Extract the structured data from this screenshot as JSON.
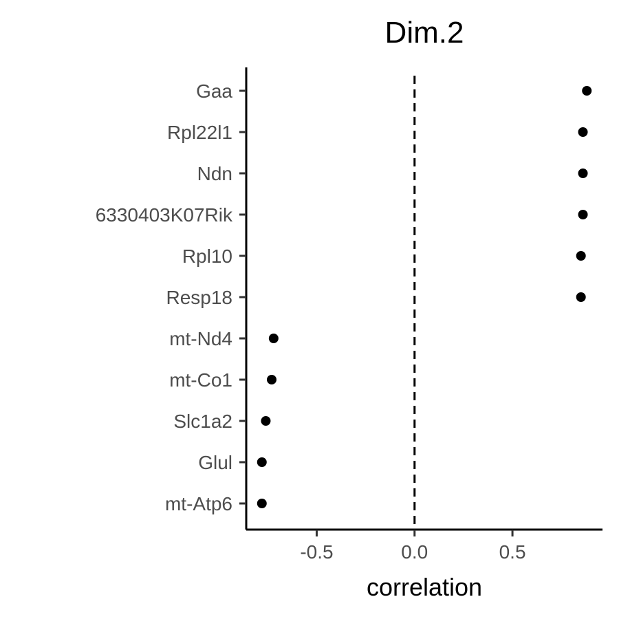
{
  "chart_data": {
    "type": "scatter",
    "title": "Dim.2",
    "xlabel": "correlation",
    "ylabel": "",
    "xlim": [
      -0.86,
      0.96
    ],
    "xticks": [
      -0.5,
      0.0,
      0.5
    ],
    "xtick_labels": [
      "-0.5",
      "0.0",
      "0.5"
    ],
    "reference_line": {
      "x": 0,
      "style": "dashed"
    },
    "grid": false,
    "legend": "none",
    "categories": [
      "Gaa",
      "Rpl22l1",
      "Ndn",
      "6330403K07Rik",
      "Rpl10",
      "Resp18",
      "mt-Nd4",
      "mt-Co1",
      "Slc1a2",
      "Glul",
      "mt-Atp6"
    ],
    "values": [
      0.88,
      0.86,
      0.86,
      0.86,
      0.85,
      0.85,
      -0.72,
      -0.73,
      -0.76,
      -0.78,
      -0.78
    ],
    "point_color": "#000000"
  }
}
